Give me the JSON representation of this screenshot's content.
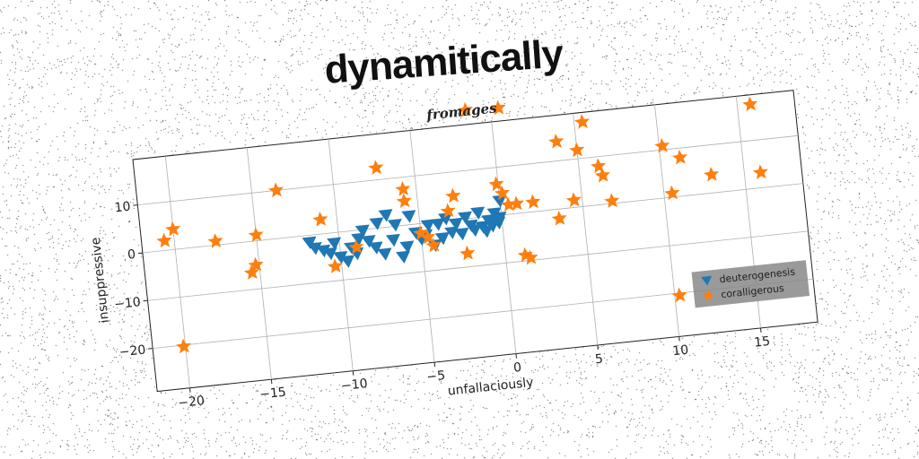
{
  "header": {
    "title": "dynamitically"
  },
  "chart_data": {
    "type": "scatter",
    "title": "fromages",
    "xlabel": "unfallaciously",
    "ylabel": "insuppressive",
    "xlim": [
      -22,
      18.5
    ],
    "ylim": [
      -29,
      19.5
    ],
    "xticks": [
      -20,
      -15,
      -10,
      -5,
      0,
      5,
      10,
      15
    ],
    "yticks": [
      -20,
      -10,
      0,
      10
    ],
    "xtick_labels": [
      "−20",
      "−15",
      "−10",
      "−5",
      "0",
      "5",
      "10",
      "15"
    ],
    "ytick_labels": [
      "−20",
      "−10",
      "0",
      "10"
    ],
    "grid": true,
    "legend_position": "lower-right",
    "series": [
      {
        "name": "deuterogenesis",
        "marker": "triangle-down",
        "color": "#1f77b4",
        "points": [
          [
            -11.8,
            -1.5
          ],
          [
            -11.5,
            -2.8
          ],
          [
            -11.0,
            -3.5
          ],
          [
            -10.6,
            -4.2
          ],
          [
            -10.3,
            -2.2
          ],
          [
            -10.0,
            -5.2
          ],
          [
            -9.6,
            -6.2
          ],
          [
            -9.3,
            -3.5
          ],
          [
            -9.0,
            -4.8
          ],
          [
            -8.8,
            -1.8
          ],
          [
            -8.5,
            -0.2
          ],
          [
            -8.2,
            -2.5
          ],
          [
            -7.8,
            -4.0
          ],
          [
            -7.6,
            1.0
          ],
          [
            -7.3,
            -5.5
          ],
          [
            -7.0,
            2.5
          ],
          [
            -6.7,
            -2.8
          ],
          [
            -6.5,
            0.3
          ],
          [
            -6.2,
            -6.5
          ],
          [
            -5.9,
            -4.5
          ],
          [
            -5.6,
            1.8
          ],
          [
            -5.3,
            -1.8
          ],
          [
            -5.0,
            -3.2
          ],
          [
            -4.7,
            -2.5
          ],
          [
            -4.5,
            -0.5
          ],
          [
            -4.2,
            -4.8
          ],
          [
            -3.9,
            -0.5
          ],
          [
            -3.7,
            -3.5
          ],
          [
            -3.4,
            0.5
          ],
          [
            -3.1,
            -2.5
          ],
          [
            -2.8,
            -0.8
          ],
          [
            -2.5,
            -3.0
          ],
          [
            -2.2,
            0.3
          ],
          [
            -1.9,
            -1.5
          ],
          [
            -1.7,
            -2.5
          ],
          [
            -1.4,
            1.0
          ],
          [
            -1.2,
            -2.0
          ],
          [
            -1.0,
            -3.0
          ],
          [
            -0.8,
            -0.8
          ],
          [
            -0.6,
            -2.0
          ],
          [
            -0.4,
            0.5
          ],
          [
            -0.2,
            -1.5
          ],
          [
            0.0,
            3.0
          ],
          [
            -0.1,
            -0.5
          ]
        ]
      },
      {
        "name": "coralligerous",
        "marker": "star",
        "color": "#ff7f0e",
        "points": [
          [
            -20.6,
            2.0
          ],
          [
            -20.0,
            4.2
          ],
          [
            -17.5,
            0.8
          ],
          [
            -15.0,
            1.2
          ],
          [
            -15.2,
            -5.0
          ],
          [
            -15.5,
            -6.5
          ],
          [
            -13.5,
            10.0
          ],
          [
            -11.0,
            3.0
          ],
          [
            -10.4,
            -7.0
          ],
          [
            -9.0,
            -3.5
          ],
          [
            -7.3,
            12.5
          ],
          [
            -5.8,
            7.5
          ],
          [
            -5.8,
            5.0
          ],
          [
            -5.0,
            -2.0
          ],
          [
            -4.6,
            -3.0
          ],
          [
            -4.3,
            -4.8
          ],
          [
            -3.2,
            2.0
          ],
          [
            -2.8,
            5.0
          ],
          [
            -2.3,
            -7.2
          ],
          [
            -1.5,
            22.5
          ],
          [
            -0.1,
            6.5
          ],
          [
            0.2,
            4.5
          ],
          [
            0.5,
            22.2
          ],
          [
            0.5,
            2.0
          ],
          [
            1.0,
            2.0
          ],
          [
            1.2,
            -8.8
          ],
          [
            1.5,
            -9.5
          ],
          [
            2.0,
            2.0
          ],
          [
            3.5,
            -2.0
          ],
          [
            3.8,
            14.0
          ],
          [
            4.5,
            1.5
          ],
          [
            5.0,
            11.8
          ],
          [
            5.5,
            17.5
          ],
          [
            6.2,
            8.0
          ],
          [
            6.4,
            6.0
          ],
          [
            6.8,
            0.5
          ],
          [
            10.2,
            10.8
          ],
          [
            10.5,
            0.8
          ],
          [
            11.2,
            8.0
          ],
          [
            13.0,
            3.8
          ],
          [
            15.8,
            17.5
          ],
          [
            16.0,
            3.2
          ],
          [
            10.3,
            -20.5
          ],
          [
            -20.1,
            -20.3
          ]
        ]
      }
    ]
  }
}
